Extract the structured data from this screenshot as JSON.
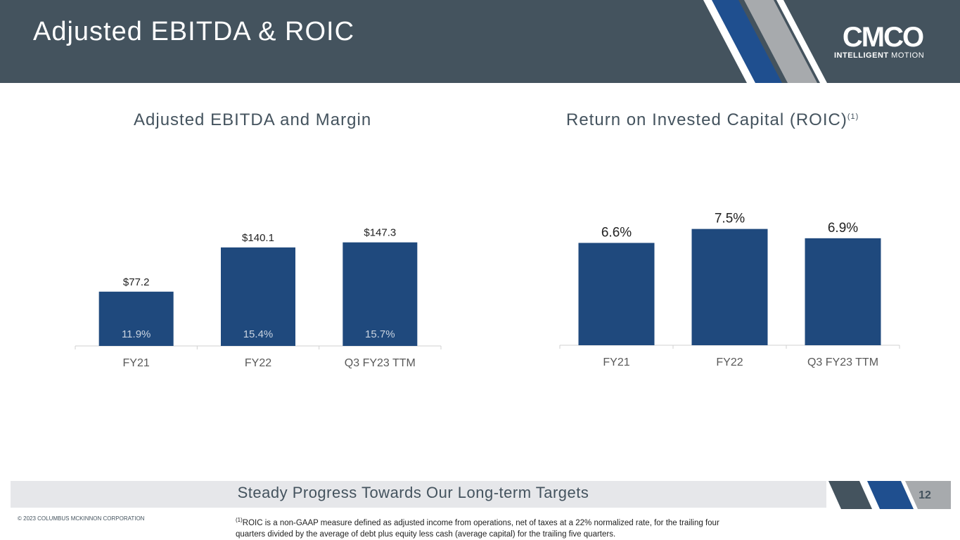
{
  "header": {
    "title": "Adjusted EBITDA & ROIC"
  },
  "logo": {
    "word": "CMCO",
    "tagline_bold": "INTELLIGENT",
    "tagline_light": " MOTION"
  },
  "colors": {
    "header_bg": "#44535e",
    "bar": "#1f497d",
    "stripe_dark": "#1f4f8f",
    "stripe_gray": "#a7aaad",
    "footer_band": "#e6e7ea"
  },
  "chart_data": [
    {
      "type": "bar",
      "title": "Adjusted EBITDA and Margin",
      "categories": [
        "FY21",
        "FY22",
        "Q3 FY23 TTM"
      ],
      "values": [
        77.2,
        140.1,
        147.3
      ],
      "value_labels": [
        "$77.2",
        "$140.1",
        "$147.3"
      ],
      "inner_labels": [
        "11.9%",
        "15.4%",
        "15.7%"
      ],
      "ylim": [
        0,
        160
      ]
    },
    {
      "type": "bar",
      "title": "Return on Invested Capital (ROIC)",
      "title_sup": "(1)",
      "categories": [
        "FY21",
        "FY22",
        "Q3 FY23 TTM"
      ],
      "values": [
        6.6,
        7.5,
        6.9
      ],
      "value_labels": [
        "6.6%",
        "7.5%",
        "6.9%"
      ],
      "ylim": [
        0,
        7.8
      ]
    }
  ],
  "footer": {
    "tagline": "Steady Progress Towards Our Long-term Targets",
    "page_number": "12",
    "copyright": "© 2023 COLUMBUS MCKINNON CORPORATION",
    "footnote_marker": "(1)",
    "footnote_text": "ROIC is a non-GAAP measure defined as adjusted income from operations, net of taxes at a 22% normalized rate, for the trailing four quarters divided by the average of debt plus equity less cash (average capital) for the trailing five quarters."
  }
}
